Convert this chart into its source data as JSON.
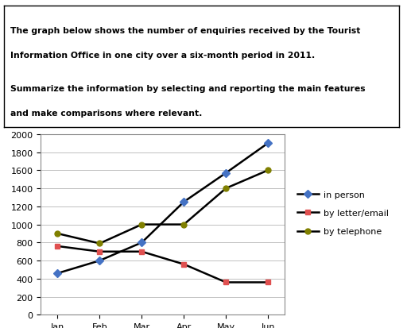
{
  "months": [
    "Jan",
    "Feb",
    "Mar",
    "Apr",
    "May",
    "Jun"
  ],
  "in_person": [
    460,
    600,
    800,
    1250,
    1570,
    1900
  ],
  "by_letter_email": [
    760,
    700,
    700,
    560,
    360,
    360
  ],
  "by_telephone": [
    900,
    790,
    1000,
    1000,
    1400,
    1600
  ],
  "in_person_color": "#4472C4",
  "by_letter_color": "#E05050",
  "by_telephone_color": "#808000",
  "line_color": "#000000",
  "ylim": [
    0,
    2000
  ],
  "yticks": [
    0,
    200,
    400,
    600,
    800,
    1000,
    1200,
    1400,
    1600,
    1800,
    2000
  ],
  "legend_labels": [
    "in person",
    "by letter/email",
    "by telephone"
  ],
  "bg_color": "#ffffff",
  "plot_bg_color": "#ffffff",
  "text_line1": "The graph below shows the number of enquiries received by the Tourist",
  "text_line2": "Information Office in one city over a six-month period in 2011.",
  "text_line3": "Summarize the information by selecting and reporting the main features",
  "text_line4": "and make comparisons where relevant."
}
